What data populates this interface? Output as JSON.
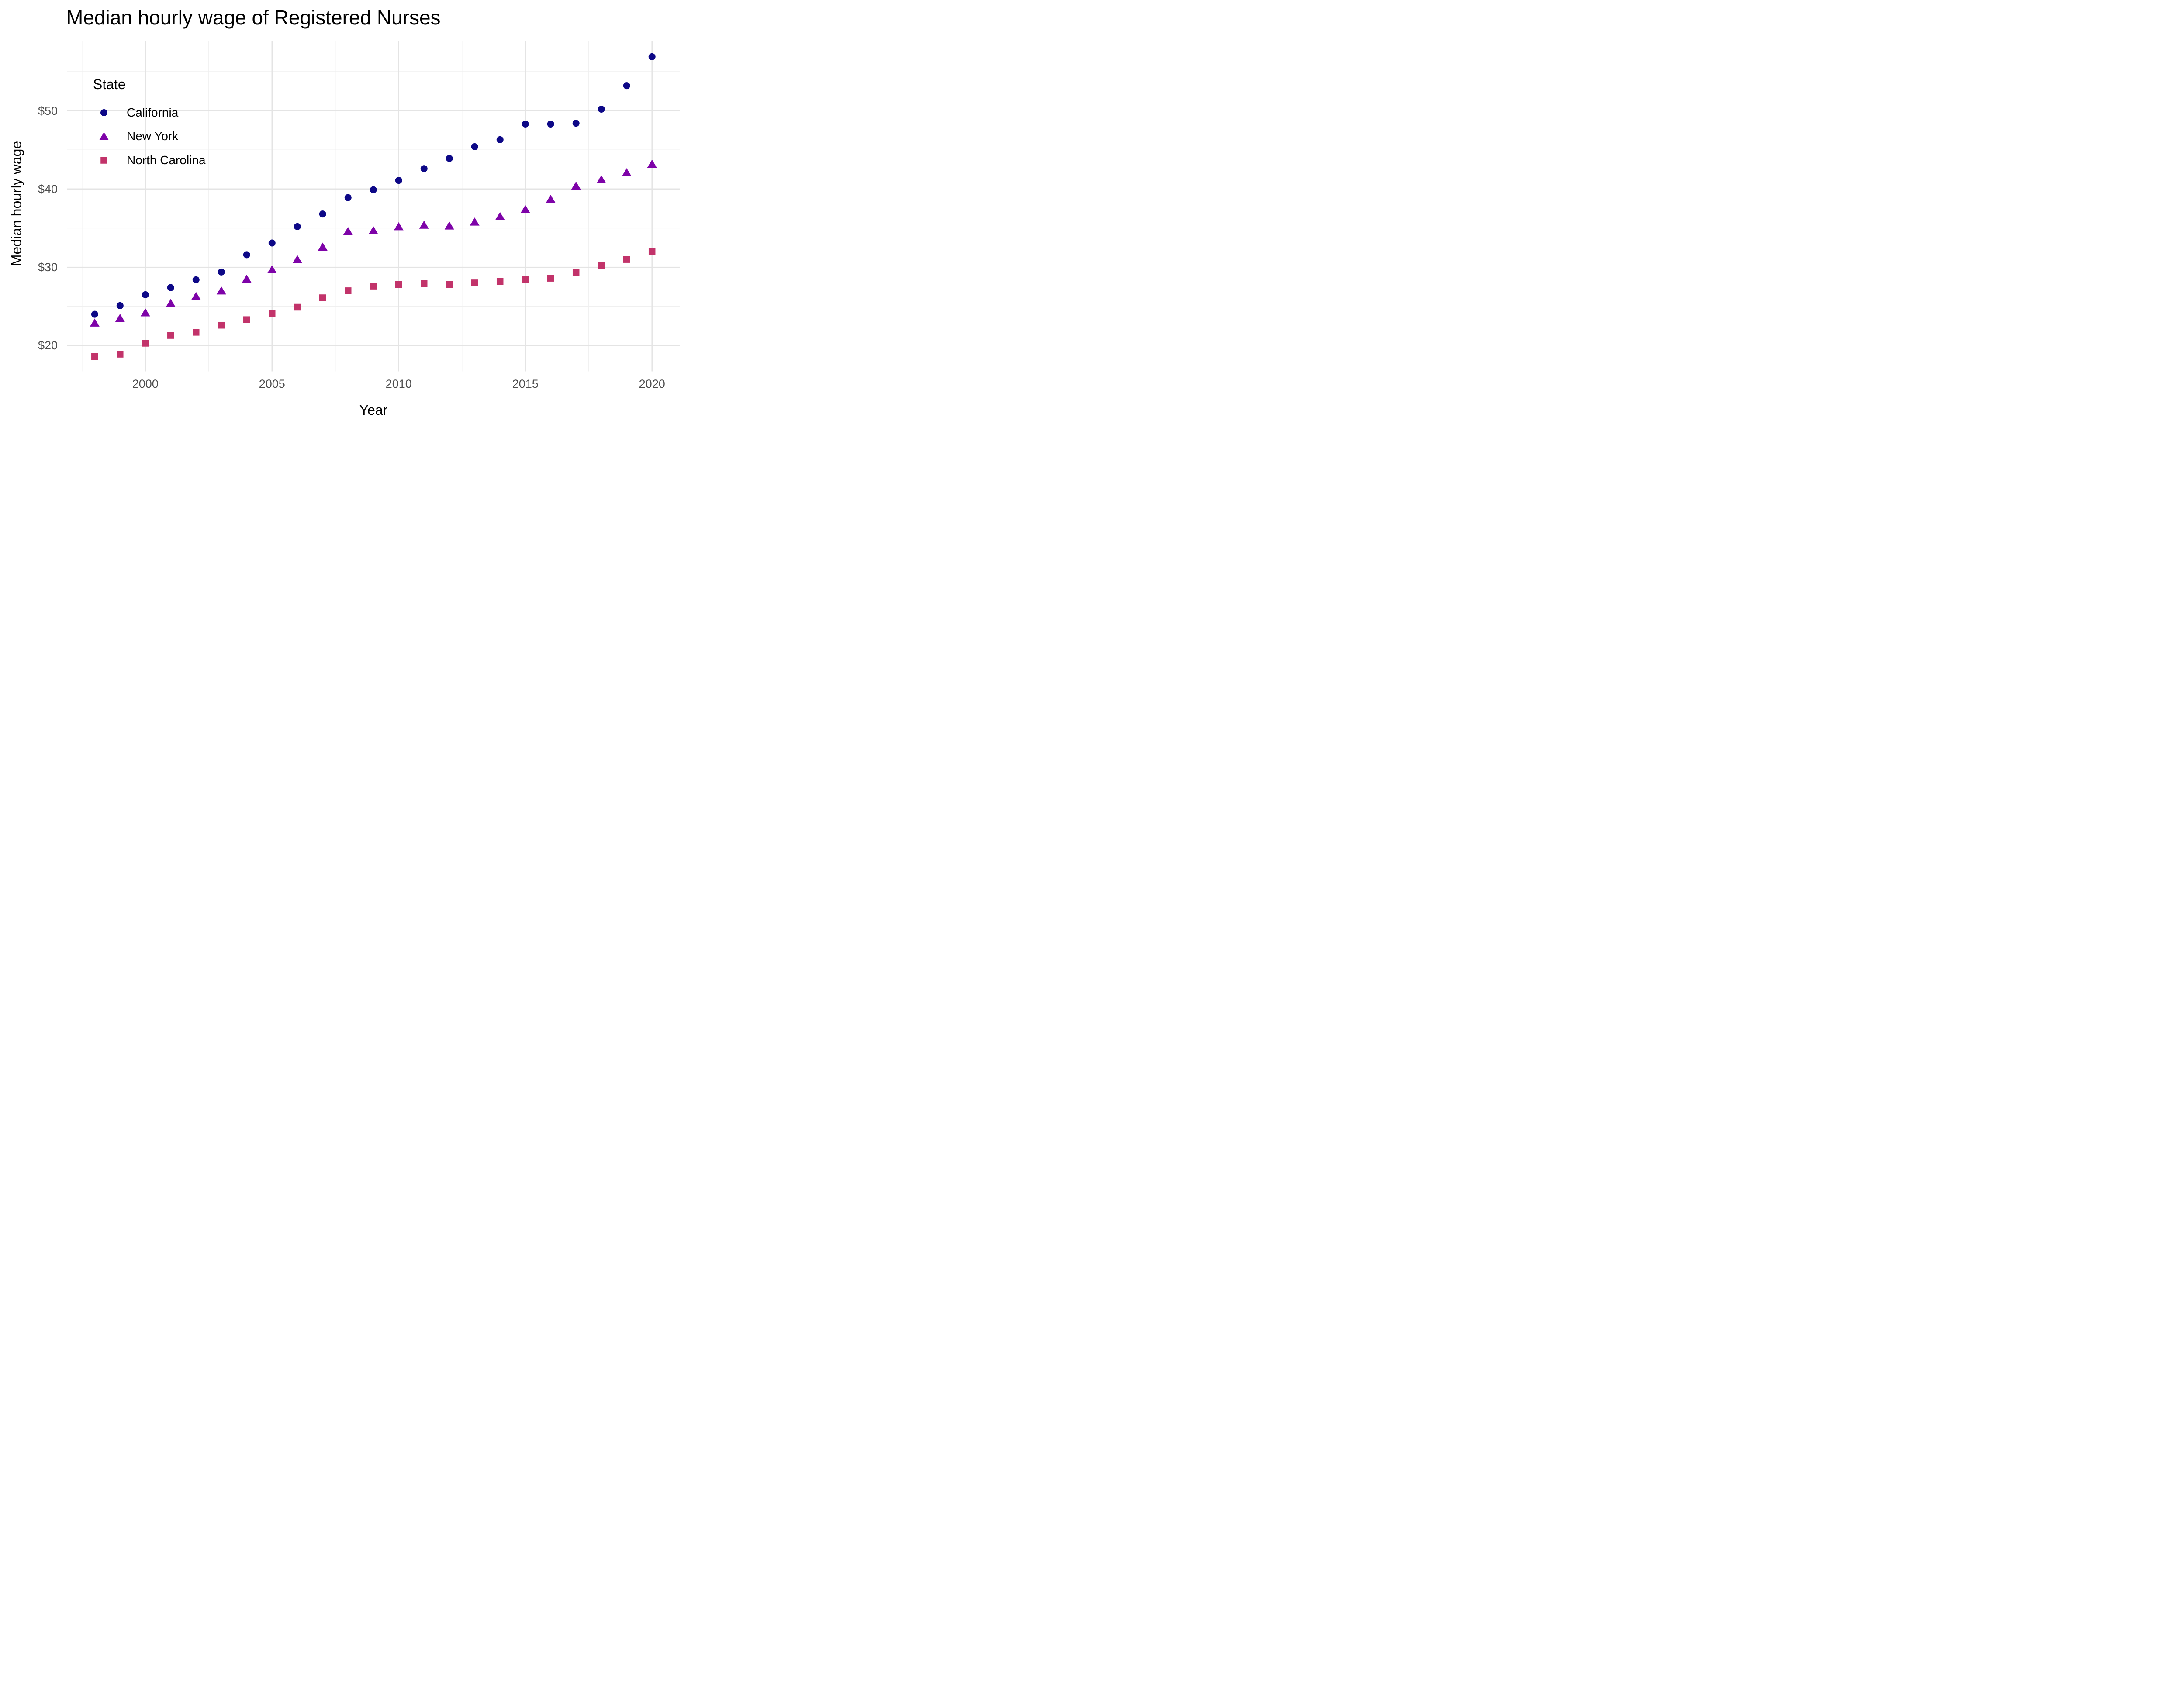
{
  "title": "Median hourly wage of Registered Nurses",
  "legend": {
    "title": "State"
  },
  "axes": {
    "x_label": "Year",
    "y_label": "Median hourly wage"
  },
  "colors": {
    "background": "#FFFFFF",
    "grid_major": "#E4E4E4",
    "grid_minor": "#F0F0F0",
    "tick_text": "#4D4D4D",
    "text": "#000000",
    "california": "#0D0887",
    "new_york": "#7E03A8",
    "north_carolina": "#C2336A"
  },
  "chart_data": {
    "type": "scatter",
    "title": "Median hourly wage of Registered Nurses",
    "xlabel": "Year",
    "ylabel": "Median hourly wage",
    "x": [
      1998,
      1999,
      2000,
      2001,
      2002,
      2003,
      2004,
      2005,
      2006,
      2007,
      2008,
      2009,
      2010,
      2011,
      2012,
      2013,
      2014,
      2015,
      2016,
      2017,
      2018,
      2019,
      2020
    ],
    "series": [
      {
        "name": "California",
        "marker": "circle",
        "color": "#0D0887",
        "values": [
          24.0,
          25.1,
          26.5,
          27.4,
          28.4,
          29.4,
          31.6,
          33.1,
          35.2,
          36.8,
          38.9,
          39.9,
          41.1,
          42.6,
          43.9,
          45.4,
          46.3,
          48.3,
          48.3,
          48.4,
          50.2,
          53.2,
          56.9
        ]
      },
      {
        "name": "New York",
        "marker": "triangle",
        "color": "#7E03A8",
        "values": [
          22.9,
          23.5,
          24.2,
          25.4,
          26.3,
          27.0,
          28.5,
          29.7,
          31.0,
          32.6,
          34.6,
          34.7,
          35.2,
          35.4,
          35.3,
          35.8,
          36.5,
          37.4,
          38.7,
          40.4,
          41.2,
          42.1,
          43.2
        ]
      },
      {
        "name": "North Carolina",
        "marker": "square",
        "color": "#C2336A",
        "values": [
          18.6,
          18.9,
          20.3,
          21.3,
          21.7,
          22.6,
          23.3,
          24.1,
          24.9,
          26.1,
          27.0,
          27.6,
          27.8,
          27.9,
          27.8,
          28.0,
          28.2,
          28.4,
          28.6,
          29.3,
          30.2,
          31.0,
          32.0
        ]
      }
    ],
    "xlim": [
      1996.9,
      2021.1
    ],
    "ylim": [
      16.7,
      58.9
    ],
    "x_ticks": {
      "values": [
        2000,
        2005,
        2010,
        2015,
        2020
      ],
      "labels": [
        "2000",
        "2005",
        "2010",
        "2015",
        "2020"
      ],
      "minor": [
        1997.5,
        2002.5,
        2007.5,
        2012.5,
        2017.5
      ]
    },
    "y_ticks": {
      "values": [
        20,
        30,
        40,
        50
      ],
      "labels": [
        "$20",
        "$30",
        "$40",
        "$50"
      ],
      "minor": [
        25,
        35,
        45,
        55
      ]
    },
    "grid": true,
    "legend_position": "inside top-left",
    "legend_title": "State"
  }
}
